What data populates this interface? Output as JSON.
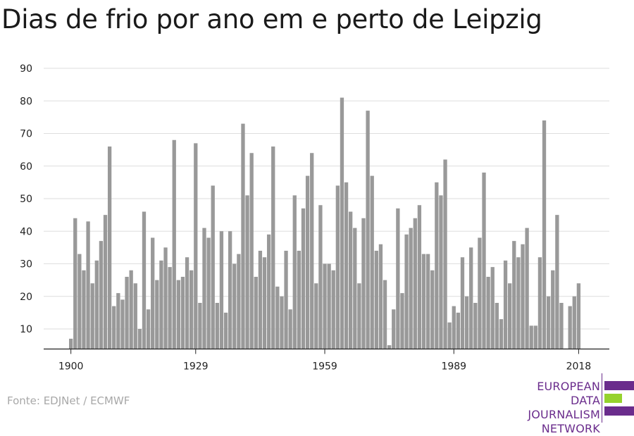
{
  "title": "Dias de frio por ano em e perto de Leipzig",
  "source": "Fonte: EDJNet / ECMWF",
  "logo": {
    "lines": [
      "EUROPEAN",
      "DATA JOURNALISM",
      "NETWORK"
    ],
    "colors": {
      "purple": "#6a2c8c",
      "green": "#95d22d"
    }
  },
  "colors": {
    "bar": "#999999",
    "grid": "#dedede",
    "axis": "#222222"
  },
  "chart_data": {
    "type": "bar",
    "title": "Dias de frio por ano em e perto de Leipzig",
    "xlabel": "",
    "ylabel": "",
    "ylim": [
      3,
      90
    ],
    "yticks": [
      10,
      20,
      30,
      40,
      50,
      60,
      70,
      80,
      90
    ],
    "xticks": [
      1900,
      1929,
      1959,
      1989,
      2018
    ],
    "grid": true,
    "x": [
      1900,
      1901,
      1902,
      1903,
      1904,
      1905,
      1906,
      1907,
      1908,
      1909,
      1910,
      1911,
      1912,
      1913,
      1914,
      1915,
      1916,
      1917,
      1918,
      1919,
      1920,
      1921,
      1922,
      1923,
      1924,
      1925,
      1926,
      1927,
      1928,
      1929,
      1930,
      1931,
      1932,
      1933,
      1934,
      1935,
      1936,
      1937,
      1938,
      1939,
      1940,
      1941,
      1942,
      1943,
      1944,
      1945,
      1946,
      1947,
      1948,
      1949,
      1950,
      1951,
      1952,
      1953,
      1954,
      1955,
      1956,
      1957,
      1958,
      1959,
      1960,
      1961,
      1962,
      1963,
      1964,
      1965,
      1966,
      1967,
      1968,
      1969,
      1970,
      1971,
      1972,
      1973,
      1974,
      1975,
      1976,
      1977,
      1978,
      1979,
      1980,
      1981,
      1982,
      1983,
      1984,
      1985,
      1986,
      1987,
      1988,
      1989,
      1990,
      1991,
      1992,
      1993,
      1994,
      1995,
      1996,
      1997,
      1998,
      1999,
      2000,
      2001,
      2002,
      2003,
      2004,
      2005,
      2006,
      2007,
      2008,
      2009,
      2010,
      2011,
      2012,
      2013,
      2014,
      2015,
      2016,
      2017,
      2018
    ],
    "values": [
      7,
      44,
      33,
      28,
      43,
      24,
      31,
      37,
      45,
      66,
      17,
      21,
      19,
      26,
      28,
      24,
      10,
      46,
      16,
      38,
      25,
      31,
      35,
      29,
      68,
      25,
      26,
      32,
      28,
      67,
      18,
      41,
      38,
      54,
      18,
      40,
      15,
      40,
      30,
      33,
      73,
      51,
      64,
      26,
      34,
      32,
      39,
      66,
      23,
      20,
      34,
      16,
      51,
      34,
      47,
      57,
      64,
      24,
      48,
      30,
      30,
      28,
      54,
      81,
      55,
      46,
      41,
      24,
      44,
      77,
      57,
      34,
      36,
      25,
      5,
      16,
      47,
      21,
      39,
      41,
      44,
      48,
      33,
      33,
      28,
      55,
      51,
      62,
      12,
      17,
      15,
      32,
      20,
      35,
      18,
      38,
      58,
      26,
      29,
      18,
      13,
      31,
      24,
      37,
      32,
      36,
      41,
      11,
      11,
      32,
      74,
      20,
      28,
      45,
      18,
      4,
      17,
      20,
      24
    ]
  }
}
